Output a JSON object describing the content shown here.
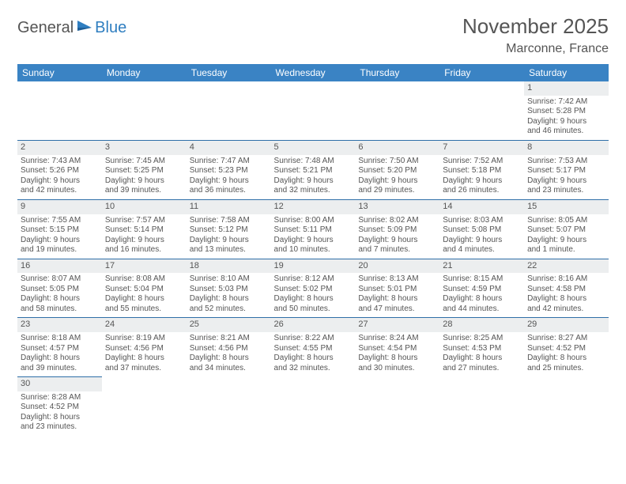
{
  "logo": {
    "part1": "General",
    "part2": "Blue"
  },
  "title": "November 2025",
  "location": "Marconne, France",
  "colors": {
    "header_bg": "#3a83c4",
    "header_text": "#ffffff",
    "daynum_bg": "#eceeef",
    "cell_border": "#2f6fa8",
    "body_text": "#555555",
    "logo_gray": "#555555",
    "logo_blue": "#2f7ec0"
  },
  "weekday_labels": [
    "Sunday",
    "Monday",
    "Tuesday",
    "Wednesday",
    "Thursday",
    "Friday",
    "Saturday"
  ],
  "weeks": [
    [
      null,
      null,
      null,
      null,
      null,
      null,
      {
        "day": "1",
        "sunrise": "Sunrise: 7:42 AM",
        "sunset": "Sunset: 5:28 PM",
        "daylight1": "Daylight: 9 hours",
        "daylight2": "and 46 minutes."
      }
    ],
    [
      {
        "day": "2",
        "sunrise": "Sunrise: 7:43 AM",
        "sunset": "Sunset: 5:26 PM",
        "daylight1": "Daylight: 9 hours",
        "daylight2": "and 42 minutes."
      },
      {
        "day": "3",
        "sunrise": "Sunrise: 7:45 AM",
        "sunset": "Sunset: 5:25 PM",
        "daylight1": "Daylight: 9 hours",
        "daylight2": "and 39 minutes."
      },
      {
        "day": "4",
        "sunrise": "Sunrise: 7:47 AM",
        "sunset": "Sunset: 5:23 PM",
        "daylight1": "Daylight: 9 hours",
        "daylight2": "and 36 minutes."
      },
      {
        "day": "5",
        "sunrise": "Sunrise: 7:48 AM",
        "sunset": "Sunset: 5:21 PM",
        "daylight1": "Daylight: 9 hours",
        "daylight2": "and 32 minutes."
      },
      {
        "day": "6",
        "sunrise": "Sunrise: 7:50 AM",
        "sunset": "Sunset: 5:20 PM",
        "daylight1": "Daylight: 9 hours",
        "daylight2": "and 29 minutes."
      },
      {
        "day": "7",
        "sunrise": "Sunrise: 7:52 AM",
        "sunset": "Sunset: 5:18 PM",
        "daylight1": "Daylight: 9 hours",
        "daylight2": "and 26 minutes."
      },
      {
        "day": "8",
        "sunrise": "Sunrise: 7:53 AM",
        "sunset": "Sunset: 5:17 PM",
        "daylight1": "Daylight: 9 hours",
        "daylight2": "and 23 minutes."
      }
    ],
    [
      {
        "day": "9",
        "sunrise": "Sunrise: 7:55 AM",
        "sunset": "Sunset: 5:15 PM",
        "daylight1": "Daylight: 9 hours",
        "daylight2": "and 19 minutes."
      },
      {
        "day": "10",
        "sunrise": "Sunrise: 7:57 AM",
        "sunset": "Sunset: 5:14 PM",
        "daylight1": "Daylight: 9 hours",
        "daylight2": "and 16 minutes."
      },
      {
        "day": "11",
        "sunrise": "Sunrise: 7:58 AM",
        "sunset": "Sunset: 5:12 PM",
        "daylight1": "Daylight: 9 hours",
        "daylight2": "and 13 minutes."
      },
      {
        "day": "12",
        "sunrise": "Sunrise: 8:00 AM",
        "sunset": "Sunset: 5:11 PM",
        "daylight1": "Daylight: 9 hours",
        "daylight2": "and 10 minutes."
      },
      {
        "day": "13",
        "sunrise": "Sunrise: 8:02 AM",
        "sunset": "Sunset: 5:09 PM",
        "daylight1": "Daylight: 9 hours",
        "daylight2": "and 7 minutes."
      },
      {
        "day": "14",
        "sunrise": "Sunrise: 8:03 AM",
        "sunset": "Sunset: 5:08 PM",
        "daylight1": "Daylight: 9 hours",
        "daylight2": "and 4 minutes."
      },
      {
        "day": "15",
        "sunrise": "Sunrise: 8:05 AM",
        "sunset": "Sunset: 5:07 PM",
        "daylight1": "Daylight: 9 hours",
        "daylight2": "and 1 minute."
      }
    ],
    [
      {
        "day": "16",
        "sunrise": "Sunrise: 8:07 AM",
        "sunset": "Sunset: 5:05 PM",
        "daylight1": "Daylight: 8 hours",
        "daylight2": "and 58 minutes."
      },
      {
        "day": "17",
        "sunrise": "Sunrise: 8:08 AM",
        "sunset": "Sunset: 5:04 PM",
        "daylight1": "Daylight: 8 hours",
        "daylight2": "and 55 minutes."
      },
      {
        "day": "18",
        "sunrise": "Sunrise: 8:10 AM",
        "sunset": "Sunset: 5:03 PM",
        "daylight1": "Daylight: 8 hours",
        "daylight2": "and 52 minutes."
      },
      {
        "day": "19",
        "sunrise": "Sunrise: 8:12 AM",
        "sunset": "Sunset: 5:02 PM",
        "daylight1": "Daylight: 8 hours",
        "daylight2": "and 50 minutes."
      },
      {
        "day": "20",
        "sunrise": "Sunrise: 8:13 AM",
        "sunset": "Sunset: 5:01 PM",
        "daylight1": "Daylight: 8 hours",
        "daylight2": "and 47 minutes."
      },
      {
        "day": "21",
        "sunrise": "Sunrise: 8:15 AM",
        "sunset": "Sunset: 4:59 PM",
        "daylight1": "Daylight: 8 hours",
        "daylight2": "and 44 minutes."
      },
      {
        "day": "22",
        "sunrise": "Sunrise: 8:16 AM",
        "sunset": "Sunset: 4:58 PM",
        "daylight1": "Daylight: 8 hours",
        "daylight2": "and 42 minutes."
      }
    ],
    [
      {
        "day": "23",
        "sunrise": "Sunrise: 8:18 AM",
        "sunset": "Sunset: 4:57 PM",
        "daylight1": "Daylight: 8 hours",
        "daylight2": "and 39 minutes."
      },
      {
        "day": "24",
        "sunrise": "Sunrise: 8:19 AM",
        "sunset": "Sunset: 4:56 PM",
        "daylight1": "Daylight: 8 hours",
        "daylight2": "and 37 minutes."
      },
      {
        "day": "25",
        "sunrise": "Sunrise: 8:21 AM",
        "sunset": "Sunset: 4:56 PM",
        "daylight1": "Daylight: 8 hours",
        "daylight2": "and 34 minutes."
      },
      {
        "day": "26",
        "sunrise": "Sunrise: 8:22 AM",
        "sunset": "Sunset: 4:55 PM",
        "daylight1": "Daylight: 8 hours",
        "daylight2": "and 32 minutes."
      },
      {
        "day": "27",
        "sunrise": "Sunrise: 8:24 AM",
        "sunset": "Sunset: 4:54 PM",
        "daylight1": "Daylight: 8 hours",
        "daylight2": "and 30 minutes."
      },
      {
        "day": "28",
        "sunrise": "Sunrise: 8:25 AM",
        "sunset": "Sunset: 4:53 PM",
        "daylight1": "Daylight: 8 hours",
        "daylight2": "and 27 minutes."
      },
      {
        "day": "29",
        "sunrise": "Sunrise: 8:27 AM",
        "sunset": "Sunset: 4:52 PM",
        "daylight1": "Daylight: 8 hours",
        "daylight2": "and 25 minutes."
      }
    ],
    [
      {
        "day": "30",
        "sunrise": "Sunrise: 8:28 AM",
        "sunset": "Sunset: 4:52 PM",
        "daylight1": "Daylight: 8 hours",
        "daylight2": "and 23 minutes."
      },
      null,
      null,
      null,
      null,
      null,
      null
    ]
  ]
}
